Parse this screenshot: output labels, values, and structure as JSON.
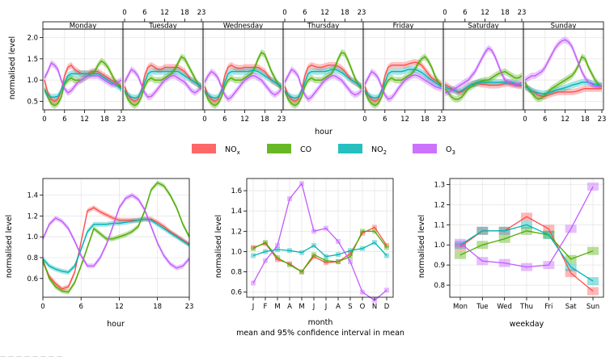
{
  "colors": {
    "nox": "#FF4D4D",
    "co": "#4DAC00",
    "no2": "#00B5B5",
    "o3": "#C25BFF",
    "grid": "#e6e6e6",
    "strip_bg": "#ffffff"
  },
  "common": {
    "ylabel": "normalised level",
    "subtitle": "mean and 95% confidence interval in mean"
  },
  "legend": {
    "items": [
      {
        "key": "nox",
        "label": "NO",
        "sub": "x"
      },
      {
        "key": "co",
        "label": "CO",
        "sub": ""
      },
      {
        "key": "no2",
        "label": "NO",
        "sub": "2"
      },
      {
        "key": "o3",
        "label": "O",
        "sub": "3"
      }
    ]
  },
  "chart_data": [
    {
      "id": "day-hour",
      "type": "line",
      "xlabel": "hour",
      "ylabel": "normalised level",
      "ylim": [
        0.3,
        2.2
      ],
      "yticks": [
        0.5,
        1.0,
        1.5,
        2.0
      ],
      "ytick_labels": [
        "0.5",
        "1.0",
        "1.5",
        "2.0"
      ],
      "xticks": [
        0,
        6,
        12,
        18,
        23
      ],
      "panels": [
        "Monday",
        "Tuesday",
        "Wednesday",
        "Thursday",
        "Friday",
        "Saturday",
        "Sunday"
      ],
      "series": {
        "nox": [
          [
            1.0,
            0.7,
            0.55,
            0.5,
            0.55,
            0.75,
            1.1,
            1.3,
            1.35,
            1.25,
            1.2,
            1.15,
            1.15,
            1.15,
            1.2,
            1.2,
            1.2,
            1.15,
            1.1,
            1.05,
            1.0,
            0.95,
            0.9,
            0.85
          ],
          [
            0.85,
            0.65,
            0.55,
            0.5,
            0.55,
            0.75,
            1.1,
            1.3,
            1.35,
            1.3,
            1.25,
            1.25,
            1.3,
            1.3,
            1.3,
            1.3,
            1.3,
            1.25,
            1.2,
            1.1,
            1.0,
            0.95,
            0.9,
            0.85
          ],
          [
            0.85,
            0.65,
            0.55,
            0.5,
            0.55,
            0.75,
            1.1,
            1.3,
            1.35,
            1.3,
            1.28,
            1.28,
            1.3,
            1.3,
            1.3,
            1.3,
            1.3,
            1.25,
            1.2,
            1.1,
            1.0,
            0.95,
            0.9,
            0.85
          ],
          [
            0.85,
            0.65,
            0.55,
            0.5,
            0.55,
            0.75,
            1.1,
            1.3,
            1.35,
            1.32,
            1.3,
            1.3,
            1.32,
            1.35,
            1.35,
            1.35,
            1.32,
            1.28,
            1.2,
            1.1,
            1.0,
            0.95,
            0.9,
            0.85
          ],
          [
            0.85,
            0.65,
            0.55,
            0.5,
            0.55,
            0.75,
            1.1,
            1.3,
            1.35,
            1.35,
            1.35,
            1.35,
            1.35,
            1.38,
            1.4,
            1.42,
            1.4,
            1.35,
            1.25,
            1.15,
            1.05,
            1.0,
            0.95,
            0.9
          ],
          [
            0.9,
            0.85,
            0.8,
            0.75,
            0.7,
            0.72,
            0.78,
            0.85,
            0.9,
            0.92,
            0.92,
            0.9,
            0.9,
            0.88,
            0.88,
            0.88,
            0.88,
            0.9,
            0.92,
            0.92,
            0.9,
            0.88,
            0.87,
            0.86
          ],
          [
            0.85,
            0.8,
            0.75,
            0.7,
            0.65,
            0.62,
            0.62,
            0.65,
            0.68,
            0.7,
            0.72,
            0.72,
            0.72,
            0.72,
            0.72,
            0.73,
            0.75,
            0.78,
            0.8,
            0.8,
            0.8,
            0.8,
            0.8,
            0.8
          ]
        ],
        "co": [
          [
            0.8,
            0.6,
            0.45,
            0.4,
            0.45,
            0.6,
            0.9,
            1.0,
            1.05,
            1.0,
            1.0,
            1.0,
            1.05,
            1.1,
            1.15,
            1.2,
            1.35,
            1.45,
            1.4,
            1.3,
            1.15,
            1.0,
            0.9,
            0.8
          ],
          [
            0.75,
            0.55,
            0.45,
            0.4,
            0.45,
            0.6,
            0.85,
            1.0,
            1.05,
            1.0,
            1.0,
            1.0,
            1.05,
            1.1,
            1.15,
            1.25,
            1.4,
            1.55,
            1.5,
            1.35,
            1.2,
            1.05,
            0.9,
            0.8
          ],
          [
            0.75,
            0.55,
            0.45,
            0.4,
            0.45,
            0.6,
            0.85,
            1.0,
            1.05,
            1.0,
            1.0,
            1.0,
            1.05,
            1.1,
            1.15,
            1.3,
            1.5,
            1.65,
            1.6,
            1.4,
            1.2,
            1.05,
            0.9,
            0.8
          ],
          [
            0.75,
            0.55,
            0.45,
            0.4,
            0.45,
            0.6,
            0.85,
            1.0,
            1.05,
            1.0,
            1.0,
            1.0,
            1.05,
            1.1,
            1.15,
            1.3,
            1.5,
            1.65,
            1.62,
            1.45,
            1.25,
            1.05,
            0.9,
            0.8
          ],
          [
            0.75,
            0.55,
            0.45,
            0.4,
            0.45,
            0.6,
            0.85,
            1.0,
            1.05,
            1.0,
            1.0,
            1.0,
            1.05,
            1.1,
            1.15,
            1.25,
            1.4,
            1.5,
            1.55,
            1.45,
            1.3,
            1.1,
            0.95,
            0.85
          ],
          [
            0.8,
            0.7,
            0.6,
            0.55,
            0.55,
            0.6,
            0.7,
            0.8,
            0.85,
            0.9,
            0.95,
            0.98,
            1.0,
            1.0,
            1.05,
            1.1,
            1.15,
            1.18,
            1.2,
            1.15,
            1.1,
            1.05,
            1.05,
            1.1
          ],
          [
            0.95,
            0.8,
            0.7,
            0.6,
            0.55,
            0.58,
            0.65,
            0.72,
            0.8,
            0.85,
            0.9,
            0.95,
            1.0,
            1.05,
            1.1,
            1.2,
            1.35,
            1.55,
            1.5,
            1.3,
            1.15,
            1.0,
            0.9,
            0.85
          ]
        ],
        "no2": [
          [
            0.75,
            0.65,
            0.6,
            0.6,
            0.62,
            0.75,
            0.95,
            1.1,
            1.15,
            1.15,
            1.15,
            1.15,
            1.15,
            1.15,
            1.15,
            1.15,
            1.15,
            1.1,
            1.05,
            1.0,
            0.95,
            0.9,
            0.85,
            0.8
          ],
          [
            0.75,
            0.65,
            0.6,
            0.58,
            0.6,
            0.72,
            0.95,
            1.15,
            1.2,
            1.2,
            1.2,
            1.2,
            1.2,
            1.2,
            1.2,
            1.2,
            1.2,
            1.15,
            1.1,
            1.05,
            1.0,
            0.95,
            0.9,
            0.85
          ],
          [
            0.75,
            0.65,
            0.6,
            0.58,
            0.6,
            0.72,
            0.95,
            1.15,
            1.2,
            1.2,
            1.2,
            1.2,
            1.2,
            1.2,
            1.22,
            1.22,
            1.2,
            1.15,
            1.1,
            1.05,
            1.0,
            0.95,
            0.9,
            0.85
          ],
          [
            0.75,
            0.65,
            0.6,
            0.58,
            0.6,
            0.72,
            0.95,
            1.15,
            1.2,
            1.2,
            1.2,
            1.2,
            1.2,
            1.22,
            1.25,
            1.25,
            1.22,
            1.18,
            1.12,
            1.05,
            1.0,
            0.95,
            0.9,
            0.85
          ],
          [
            0.75,
            0.65,
            0.6,
            0.58,
            0.6,
            0.72,
            0.95,
            1.15,
            1.2,
            1.2,
            1.2,
            1.2,
            1.22,
            1.25,
            1.25,
            1.25,
            1.22,
            1.18,
            1.12,
            1.05,
            1.0,
            0.95,
            0.9,
            0.85
          ],
          [
            0.85,
            0.8,
            0.78,
            0.75,
            0.72,
            0.75,
            0.8,
            0.85,
            0.9,
            0.92,
            0.95,
            0.95,
            0.95,
            0.95,
            0.95,
            0.95,
            0.95,
            0.95,
            0.95,
            0.95,
            0.95,
            0.92,
            0.9,
            0.88
          ],
          [
            0.85,
            0.8,
            0.75,
            0.72,
            0.7,
            0.68,
            0.68,
            0.7,
            0.72,
            0.75,
            0.78,
            0.8,
            0.82,
            0.85,
            0.88,
            0.9,
            0.92,
            0.95,
            0.95,
            0.95,
            0.92,
            0.9,
            0.88,
            0.85
          ]
        ],
        "o3": [
          [
            1.05,
            1.2,
            1.4,
            1.35,
            1.25,
            1.0,
            0.8,
            0.7,
            0.75,
            0.85,
            0.95,
            1.0,
            1.05,
            1.1,
            1.1,
            1.1,
            1.1,
            1.05,
            1.0,
            0.95,
            0.9,
            0.9,
            0.95,
            1.0
          ],
          [
            0.95,
            1.1,
            1.25,
            1.2,
            1.1,
            0.9,
            0.7,
            0.6,
            0.62,
            0.7,
            0.8,
            0.9,
            1.0,
            1.05,
            1.1,
            1.1,
            1.05,
            1.0,
            0.95,
            0.85,
            0.75,
            0.7,
            0.75,
            0.85
          ],
          [
            0.95,
            1.1,
            1.2,
            1.15,
            1.05,
            0.85,
            0.65,
            0.55,
            0.6,
            0.7,
            0.8,
            0.9,
            1.0,
            1.05,
            1.1,
            1.1,
            1.05,
            1.0,
            0.9,
            0.8,
            0.7,
            0.65,
            0.7,
            0.8
          ],
          [
            0.95,
            1.1,
            1.25,
            1.2,
            1.1,
            0.85,
            0.65,
            0.55,
            0.6,
            0.7,
            0.8,
            0.9,
            1.0,
            1.05,
            1.1,
            1.1,
            1.05,
            1.0,
            0.9,
            0.8,
            0.7,
            0.65,
            0.68,
            0.75
          ],
          [
            0.9,
            1.05,
            1.2,
            1.15,
            1.05,
            0.85,
            0.65,
            0.55,
            0.58,
            0.68,
            0.8,
            0.9,
            1.0,
            1.05,
            1.1,
            1.12,
            1.1,
            1.05,
            1.0,
            0.95,
            0.9,
            0.85,
            0.82,
            0.8
          ],
          [
            0.7,
            0.72,
            0.75,
            0.8,
            0.85,
            0.9,
            0.95,
            1.0,
            1.1,
            1.2,
            1.35,
            1.5,
            1.65,
            1.75,
            1.7,
            1.55,
            1.35,
            1.15,
            1.0,
            0.95,
            0.92,
            0.9,
            0.9,
            0.95
          ],
          [
            1.0,
            1.05,
            1.1,
            1.1,
            1.15,
            1.2,
            1.3,
            1.45,
            1.6,
            1.75,
            1.85,
            1.92,
            1.95,
            1.9,
            1.8,
            1.6,
            1.4,
            1.2,
            1.05,
            0.95,
            0.9,
            0.85,
            0.85,
            0.88
          ]
        ]
      }
    },
    {
      "id": "hour",
      "type": "line",
      "xlabel": "hour",
      "ylabel": "normalised level",
      "ylim": [
        0.42,
        1.56
      ],
      "yticks": [
        0.6,
        0.8,
        1.0,
        1.2,
        1.4
      ],
      "ytick_labels": [
        "0.6",
        "0.8",
        "1.0",
        "1.2",
        "1.4"
      ],
      "xticks": [
        0,
        6,
        12,
        18,
        23
      ],
      "xlim": [
        0,
        23
      ],
      "x": [
        0,
        1,
        2,
        3,
        4,
        5,
        6,
        7,
        8,
        9,
        10,
        11,
        12,
        13,
        14,
        15,
        16,
        17,
        18,
        19,
        20,
        21,
        22,
        23
      ],
      "series": {
        "nox": [
          0.76,
          0.62,
          0.55,
          0.5,
          0.52,
          0.66,
          0.95,
          1.25,
          1.28,
          1.24,
          1.21,
          1.18,
          1.16,
          1.16,
          1.16,
          1.16,
          1.17,
          1.17,
          1.14,
          1.1,
          1.05,
          1.01,
          0.97,
          0.93
        ],
        "co": [
          0.78,
          0.6,
          0.52,
          0.48,
          0.47,
          0.56,
          0.72,
          0.9,
          1.08,
          1.03,
          0.98,
          0.98,
          1.0,
          1.02,
          1.05,
          1.1,
          1.25,
          1.45,
          1.52,
          1.49,
          1.4,
          1.28,
          1.12,
          1.0
        ],
        "no2": [
          0.79,
          0.72,
          0.69,
          0.67,
          0.66,
          0.72,
          0.88,
          1.05,
          1.12,
          1.12,
          1.12,
          1.13,
          1.13,
          1.14,
          1.15,
          1.16,
          1.17,
          1.16,
          1.12,
          1.08,
          1.04,
          1.0,
          0.96,
          0.92
        ],
        "o3": [
          0.98,
          1.12,
          1.18,
          1.15,
          1.08,
          0.96,
          0.82,
          0.72,
          0.72,
          0.8,
          0.93,
          1.1,
          1.28,
          1.37,
          1.4,
          1.36,
          1.26,
          1.1,
          0.94,
          0.82,
          0.74,
          0.7,
          0.72,
          0.79
        ]
      }
    },
    {
      "id": "month",
      "type": "line",
      "xlabel": "month",
      "ylabel": "normalised level",
      "ylim": [
        0.55,
        1.72
      ],
      "yticks": [
        0.6,
        0.8,
        1.0,
        1.2,
        1.4,
        1.6
      ],
      "ytick_labels": [
        "0.6",
        "0.8",
        "1.0",
        "1.2",
        "1.4",
        "1.6"
      ],
      "categories": [
        "J",
        "F",
        "M",
        "A",
        "M",
        "J",
        "J",
        "A",
        "S",
        "O",
        "N",
        "D"
      ],
      "series": {
        "nox": [
          1.04,
          1.08,
          0.92,
          0.88,
          0.8,
          0.95,
          0.89,
          0.9,
          0.98,
          1.18,
          1.24,
          1.06
        ],
        "co": [
          1.03,
          1.09,
          0.94,
          0.87,
          0.8,
          0.97,
          0.91,
          0.9,
          0.95,
          1.2,
          1.2,
          1.04
        ],
        "no2": [
          0.96,
          1.0,
          1.02,
          1.01,
          0.99,
          1.06,
          0.95,
          0.97,
          1.01,
          1.03,
          1.09,
          0.96
        ],
        "o3": [
          0.69,
          0.91,
          1.06,
          1.52,
          1.67,
          1.2,
          1.23,
          1.1,
          0.9,
          0.6,
          0.52,
          0.62
        ]
      }
    },
    {
      "id": "weekday",
      "type": "line",
      "xlabel": "weekday",
      "ylabel": "normalised level",
      "ylim": [
        0.74,
        1.33
      ],
      "yticks": [
        0.8,
        0.9,
        1.0,
        1.1,
        1.2,
        1.3
      ],
      "ytick_labels": [
        "0.8",
        "0.9",
        "1.0",
        "1.1",
        "1.2",
        "1.3"
      ],
      "categories": [
        "Mon",
        "Tue",
        "Wed",
        "Thu",
        "Fri",
        "Sat",
        "Sun"
      ],
      "series": {
        "nox": [
          0.99,
          1.07,
          1.07,
          1.14,
          1.08,
          0.86,
          0.77
        ],
        "co": [
          0.95,
          1.0,
          1.03,
          1.07,
          1.05,
          0.93,
          0.97
        ],
        "no2": [
          1.0,
          1.07,
          1.07,
          1.1,
          1.05,
          0.89,
          0.82
        ],
        "o3": [
          1.01,
          0.92,
          0.91,
          0.89,
          0.9,
          1.08,
          1.29
        ]
      }
    }
  ]
}
